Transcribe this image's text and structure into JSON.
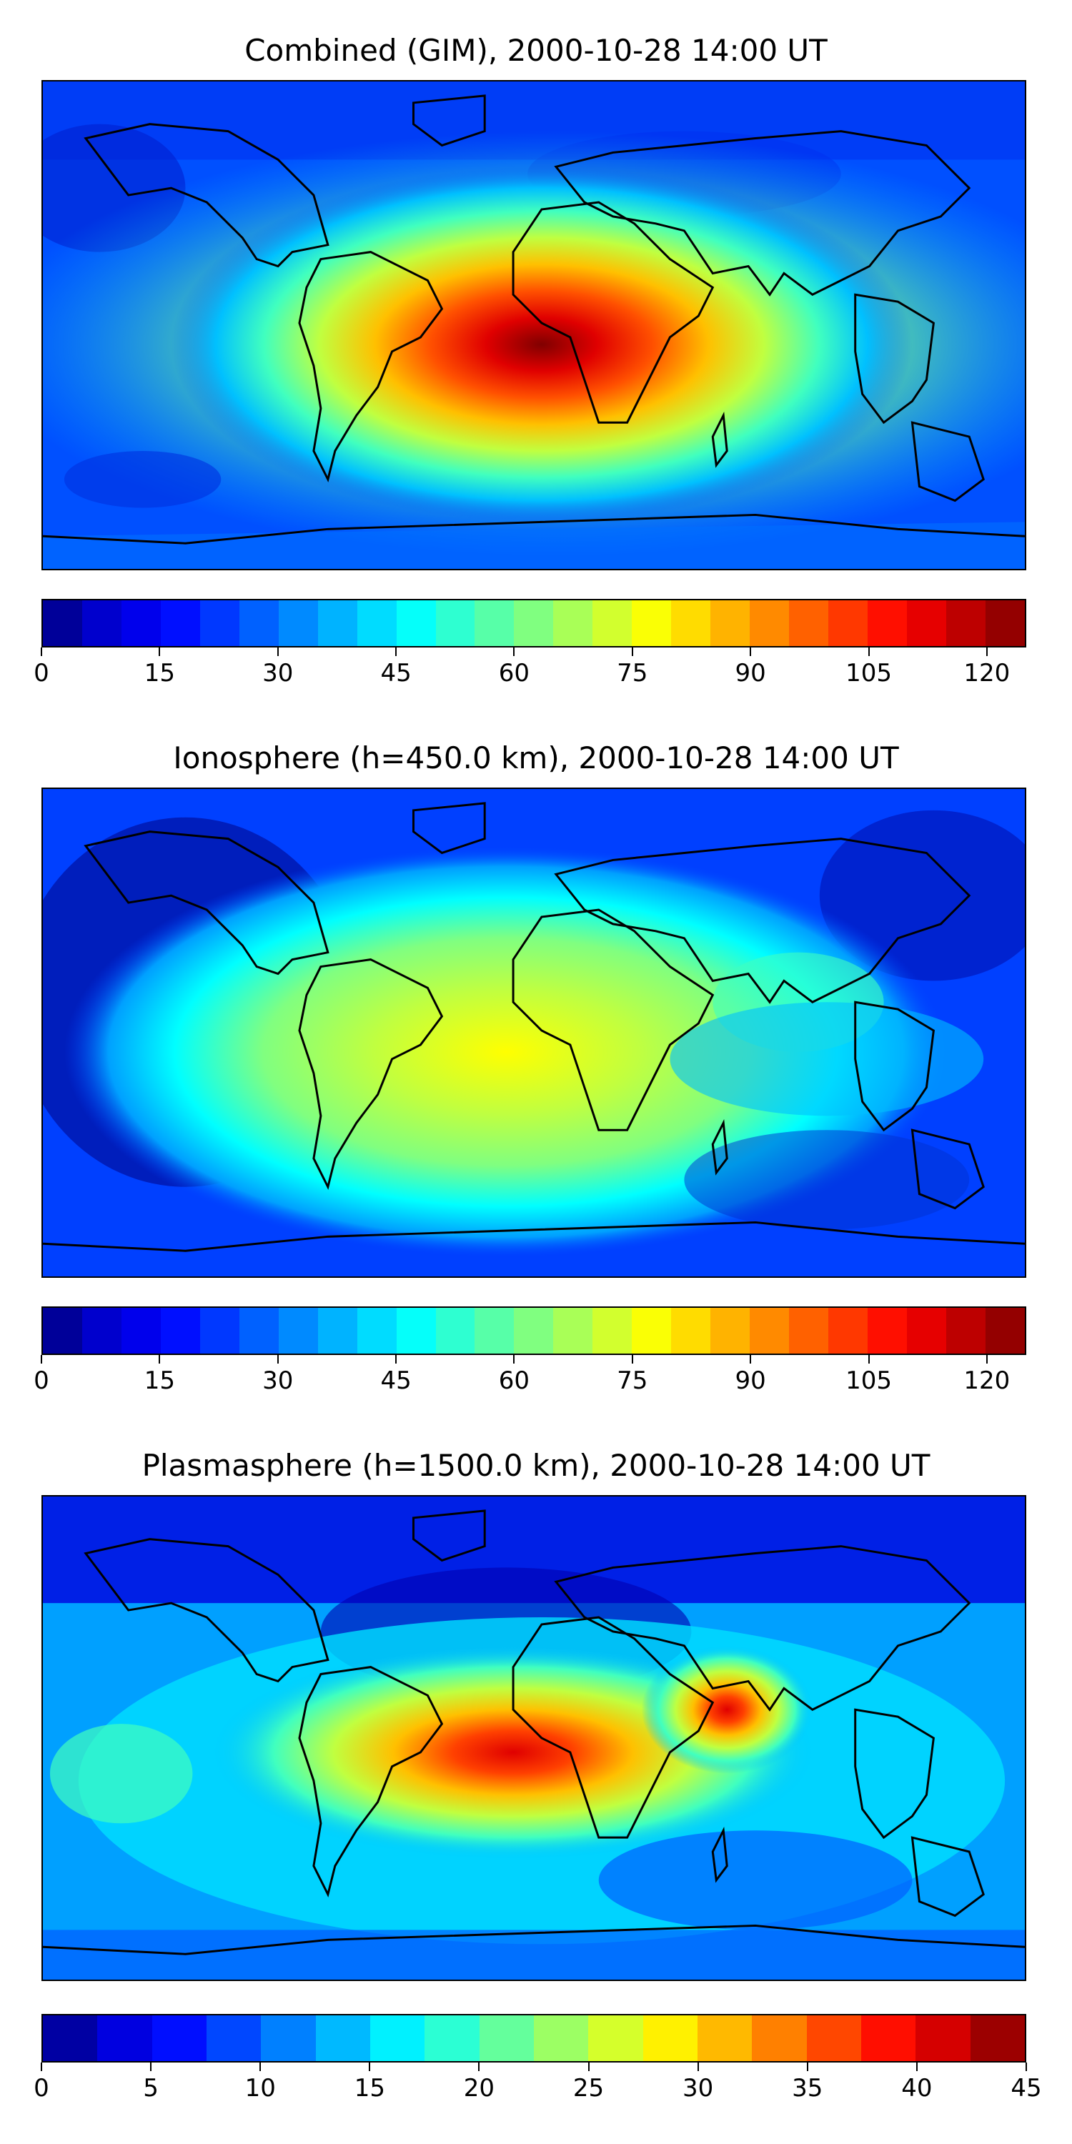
{
  "panels": [
    {
      "title": "Combined (GIM), 2000-10-28 14:00 UT",
      "colorbar": {
        "min": 0,
        "max": 125,
        "levels": 25,
        "ticks": [
          "0",
          "15",
          "30",
          "45",
          "60",
          "75",
          "90",
          "105",
          "120"
        ],
        "tick_values": [
          0,
          15,
          30,
          45,
          60,
          75,
          90,
          105,
          120
        ]
      },
      "peak_level": 0.93
    },
    {
      "title": "Ionosphere  (h=450.0 km), 2000-10-28 14:00 UT",
      "colorbar": {
        "min": 0,
        "max": 125,
        "levels": 25,
        "ticks": [
          "0",
          "15",
          "30",
          "45",
          "60",
          "75",
          "90",
          "105",
          "120"
        ],
        "tick_values": [
          0,
          15,
          30,
          45,
          60,
          75,
          90,
          105,
          120
        ]
      },
      "peak_level": 0.62
    },
    {
      "title": "Plasmasphere (h=1500.0 km), 2000-10-28 14:00 UT",
      "colorbar": {
        "min": 0,
        "max": 45,
        "levels": 18,
        "ticks": [
          "0",
          "5",
          "10",
          "15",
          "20",
          "25",
          "30",
          "35",
          "40",
          "45"
        ],
        "tick_values": [
          0,
          5,
          10,
          15,
          20,
          25,
          30,
          35,
          40,
          45
        ]
      },
      "peak_level": 0.9
    }
  ],
  "colormap": [
    "#00007f",
    "#0000d0",
    "#0000ff",
    "#0040ff",
    "#0080ff",
    "#00c0ff",
    "#00ffff",
    "#40ffbf",
    "#80ff80",
    "#c0ff40",
    "#ffff00",
    "#ffc000",
    "#ff8000",
    "#ff4000",
    "#ff0000",
    "#c00000",
    "#800000"
  ]
}
